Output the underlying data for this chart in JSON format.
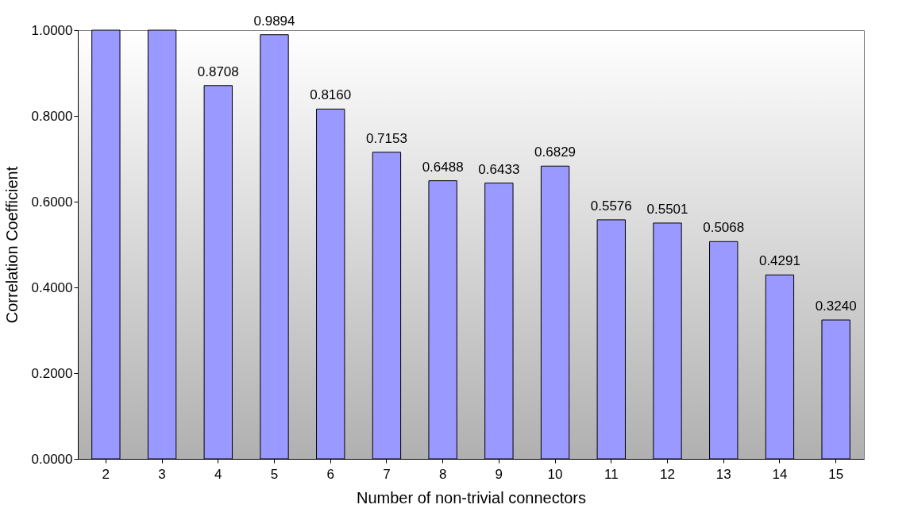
{
  "chart_data": {
    "type": "bar",
    "xlabel": "Number of non-trivial connectors",
    "ylabel": "Correlation Coefficient",
    "categories": [
      "2",
      "3",
      "4",
      "5",
      "6",
      "7",
      "8",
      "9",
      "10",
      "11",
      "12",
      "13",
      "14",
      "15"
    ],
    "values": [
      1.0,
      1.0,
      0.8708,
      0.9894,
      0.816,
      0.7153,
      0.6488,
      0.6433,
      0.6829,
      0.5576,
      0.5501,
      0.5068,
      0.4291,
      0.324
    ],
    "value_labels": [
      null,
      null,
      "0.8708",
      "0.9894",
      "0.8160",
      "0.7153",
      "0.6488",
      "0.6433",
      "0.6829",
      "0.5576",
      "0.5501",
      "0.5068",
      "0.4291",
      "0.3240"
    ],
    "color": "#9999ff",
    "ylim": [
      0,
      1
    ],
    "yticks": [
      {
        "value": 0,
        "label": "0.0000"
      },
      {
        "value": 0.2,
        "label": "0.2000"
      },
      {
        "value": 0.4,
        "label": "0.4000"
      },
      {
        "value": 0.6,
        "label": "0.6000"
      },
      {
        "value": 0.8,
        "label": "0.8000"
      },
      {
        "value": 1,
        "label": "1.0000"
      }
    ],
    "grid": false
  }
}
